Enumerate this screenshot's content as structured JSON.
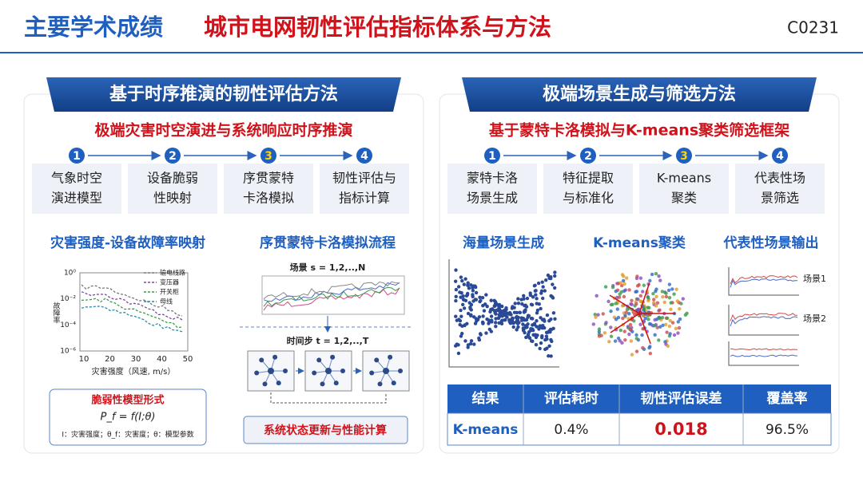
{
  "header": {
    "title_main": "主要学术成绩",
    "title_sub": "城市电网韧性评估指标体系与方法",
    "code": "C0231"
  },
  "left_panel": {
    "banner": "基于时序推演的韧性评估方法",
    "subtitle": "极端灾害时空演进与系统响应时序推演",
    "steps": [
      {
        "number": "1",
        "lines": [
          "气象时空",
          "演进模型"
        ]
      },
      {
        "number": "2",
        "lines": [
          "设备脆弱",
          "性映射"
        ]
      },
      {
        "number": "3",
        "lines": [
          "序贯蒙特",
          "卡洛模拟"
        ]
      },
      {
        "number": "4",
        "lines": [
          "韧性评估与",
          "指标计算"
        ]
      }
    ],
    "mapping": {
      "title": "灾害强度-设备故障率映射",
      "ylabel": "故障率",
      "xlabel": "灾害强度（风速, m/s）",
      "yticks": [
        "10⁰",
        "10⁻²",
        "10⁻⁴",
        "10⁻⁶"
      ],
      "xticks": [
        "10",
        "20",
        "30",
        "40",
        "50"
      ],
      "legend": [
        "输电线路",
        "变压器",
        "开关柜",
        "母线"
      ],
      "model_box": {
        "title": "脆弱性模型形式",
        "formula": "P_f = f(I;θ)",
        "note": "I：灾害强度；θ_f：灾害度；θ：模型参数"
      }
    },
    "simulation": {
      "title": "序贯蒙特卡洛模拟流程",
      "scenario": "场景 s = 1,2,..,N",
      "timestep": "时间步 t = 1,2,..,T",
      "bottom": "系统状态更新与性能计算"
    }
  },
  "right_panel": {
    "banner": "极端场景生成与筛选方法",
    "subtitle": "基于蒙特卡洛模拟与K-means聚类筛选框架",
    "steps": [
      {
        "number": "1",
        "lines": [
          "蒙特卡洛",
          "场景生成"
        ]
      },
      {
        "number": "2",
        "lines": [
          "特征提取",
          "与标准化"
        ]
      },
      {
        "number": "3",
        "lines": [
          "K-means",
          "聚类"
        ]
      },
      {
        "number": "4",
        "lines": [
          "代表性场",
          "景筛选"
        ]
      }
    ],
    "figures": {
      "generation": "海量场景生成",
      "clustering": "K-means聚类",
      "output": "代表性场景输出",
      "scene_labels": [
        "场景1",
        "场景2"
      ]
    },
    "table": {
      "header": [
        "结果",
        "评估耗时",
        "韧性评估误差",
        "覆盖率"
      ],
      "rows": [
        [
          "K-means",
          "0.4%",
          "0.018",
          "96.5%"
        ]
      ]
    }
  }
}
